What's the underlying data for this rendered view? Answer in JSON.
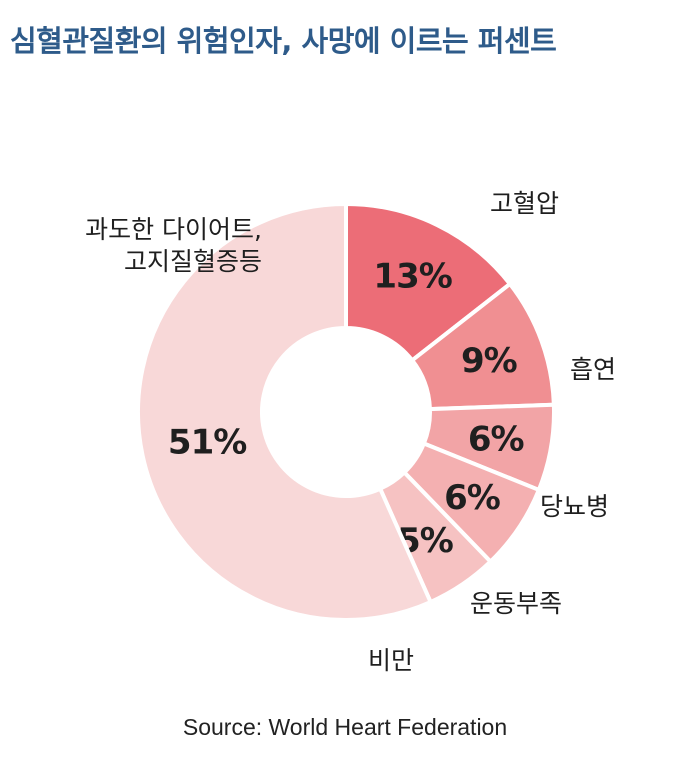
{
  "title": "심혈관질환의 위험인자, 사망에 이르는 퍼센트",
  "source": "Source: World Heart Federation",
  "chart_data": {
    "type": "pie",
    "variant": "donut",
    "series": [
      {
        "label": "고혈압",
        "value": 13,
        "value_label": "13%",
        "color": "#ec6d77"
      },
      {
        "label": "흡연",
        "value": 9,
        "value_label": "9%",
        "color": "#f08f92"
      },
      {
        "label": "당뇨병",
        "value": 6,
        "value_label": "6%",
        "color": "#f2a4a6"
      },
      {
        "label": "운동부족",
        "value": 6,
        "value_label": "6%",
        "color": "#f4b0b1"
      },
      {
        "label": "비만",
        "value": 5,
        "value_label": "5%",
        "color": "#f6c2c2"
      },
      {
        "label": "과도한 다이어트,\n고지질혈증등",
        "value": 51,
        "value_label": "51%",
        "color": "#f8d8d8"
      }
    ]
  }
}
